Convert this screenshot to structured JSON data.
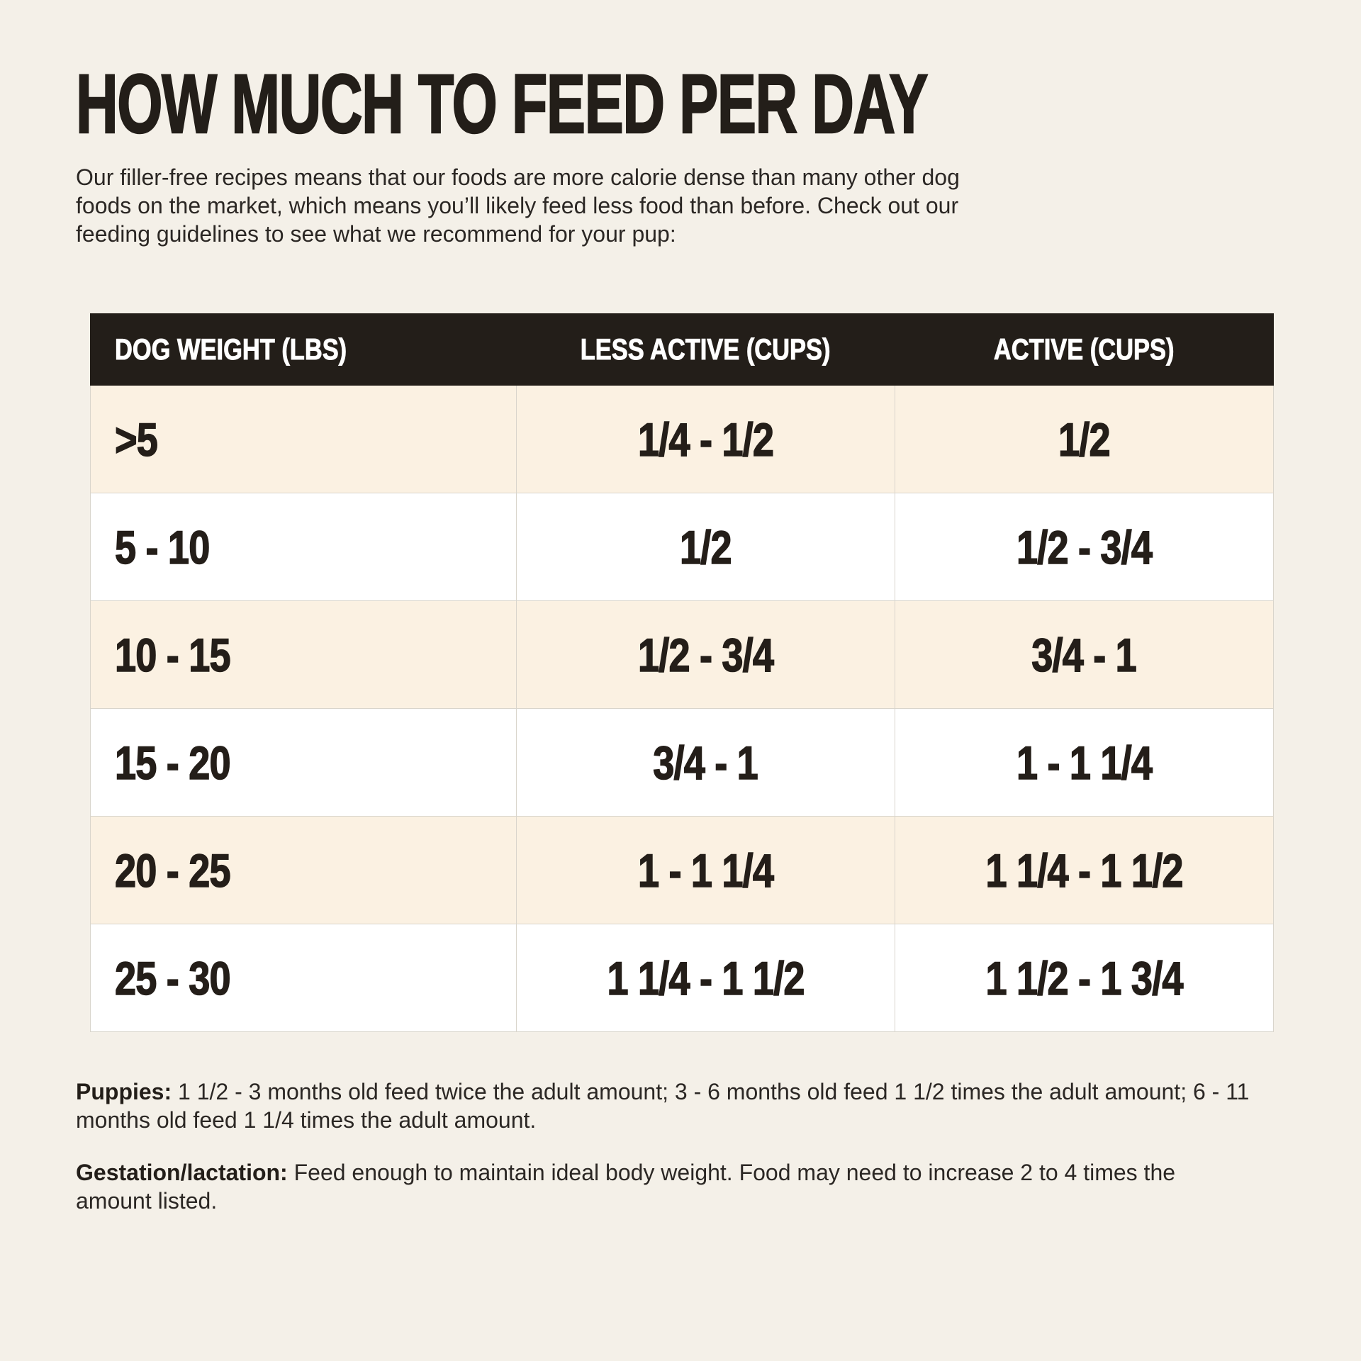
{
  "page": {
    "title": "HOW MUCH TO FEED PER DAY",
    "intro": "Our filler-free recipes means that our foods are more calorie dense than many other dog foods on the market, which means you’ll likely feed less food than before. Check out our feeding guidelines to see what we recommend for your pup:"
  },
  "colors": {
    "page_background": "#f4f0e8",
    "header_bar": "#231e19",
    "cream_row": "#fbf1e2",
    "white_row": "#ffffff",
    "text": "#231e19",
    "divider": "#d9d5cc"
  },
  "chart_data": {
    "type": "table",
    "title": "HOW MUCH TO FEED PER DAY",
    "columns": [
      "DOG WEIGHT (LBS)",
      "LESS ACTIVE (CUPS)",
      "ACTIVE (CUPS)"
    ],
    "rows": [
      [
        ">5",
        "1/4 - 1/2",
        "1/2"
      ],
      [
        "5 - 10",
        "1/2",
        "1/2 - 3/4"
      ],
      [
        "10 - 15",
        "1/2 - 3/4",
        "3/4 - 1"
      ],
      [
        "15 - 20",
        "3/4 - 1",
        "1 - 1 1/4"
      ],
      [
        "20 - 25",
        "1 - 1 1/4",
        "1 1/4 - 1 1/2"
      ],
      [
        "25 - 30",
        "1 1/4 - 1 1/2",
        "1 1/2 - 1 3/4"
      ]
    ]
  },
  "table": {
    "headers": {
      "weight": "DOG WEIGHT (LBS)",
      "less_active": "LESS ACTIVE (CUPS)",
      "active": "ACTIVE (CUPS)"
    },
    "rows": [
      {
        "weight": ">5",
        "less_active": "1/4 - 1/2",
        "active": "1/2"
      },
      {
        "weight": "5 - 10",
        "less_active": "1/2",
        "active": "1/2 - 3/4"
      },
      {
        "weight": "10 - 15",
        "less_active": "1/2 - 3/4",
        "active": "3/4 - 1"
      },
      {
        "weight": "15 - 20",
        "less_active": "3/4 - 1",
        "active": "1 - 1 1/4"
      },
      {
        "weight": "20 - 25",
        "less_active": "1 - 1 1/4",
        "active": "1 1/4 - 1 1/2"
      },
      {
        "weight": "25 - 30",
        "less_active": "1 1/4 - 1 1/2",
        "active": "1 1/2 - 1 3/4"
      }
    ]
  },
  "notes": [
    {
      "label": "Puppies:",
      "text": "1 1/2 - 3 months old feed twice the adult amount; 3 - 6 months old feed 1 1/2 times the adult amount; 6 - 11 months old feed 1 1/4 times the adult amount."
    },
    {
      "label": "Gestation/lactation:",
      "text": "Feed enough to maintain ideal body weight. Food may need to increase 2 to 4 times the amount listed."
    }
  ]
}
